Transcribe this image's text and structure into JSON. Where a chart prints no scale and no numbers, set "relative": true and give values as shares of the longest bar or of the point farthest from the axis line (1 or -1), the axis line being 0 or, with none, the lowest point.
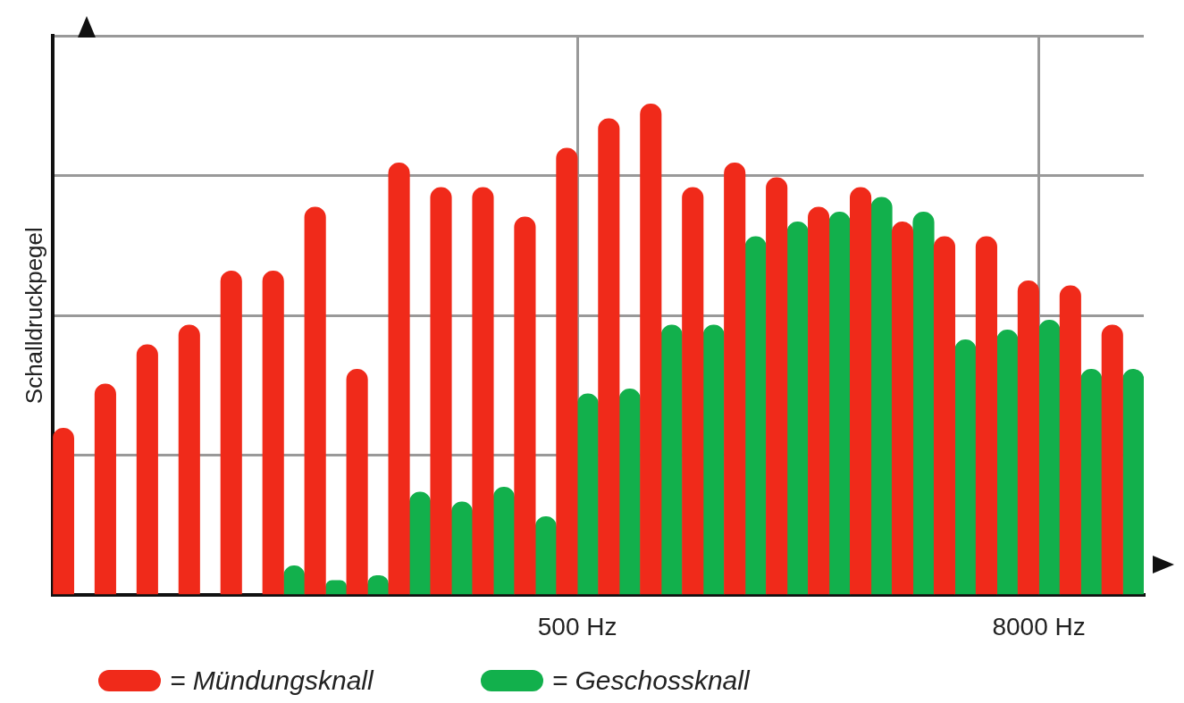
{
  "chart_data": {
    "type": "bar",
    "relative": true,
    "ylabel": "Schalldruckpegel",
    "categories": [
      null,
      null,
      null,
      null,
      null,
      null,
      null,
      null,
      null,
      null,
      null,
      null,
      "500 Hz",
      null,
      null,
      null,
      null,
      null,
      null,
      null,
      null,
      null,
      null,
      "8000 Hz",
      null,
      null
    ],
    "series": [
      {
        "name": "= Mündungsknall",
        "color": "#f02a1a",
        "values": [
          0.34,
          0.43,
          0.51,
          0.55,
          0.66,
          0.66,
          0.79,
          0.46,
          0.88,
          0.83,
          0.83,
          0.77,
          0.91,
          0.97,
          1,
          0.83,
          0.88,
          0.85,
          0.79,
          0.83,
          0.76,
          0.73,
          0.73,
          0.64,
          0.63,
          0.55
        ]
      },
      {
        "name": "= Geschossknall",
        "color": "#12b04c",
        "values": [
          null,
          null,
          null,
          null,
          null,
          0.06,
          0.03,
          0.04,
          0.21,
          0.19,
          0.22,
          0.16,
          0.41,
          0.42,
          0.55,
          0.55,
          0.73,
          0.76,
          0.78,
          0.81,
          0.78,
          0.52,
          0.54,
          0.56,
          0.46,
          0.46
        ]
      }
    ],
    "grid": true,
    "legend": "bottom left"
  }
}
